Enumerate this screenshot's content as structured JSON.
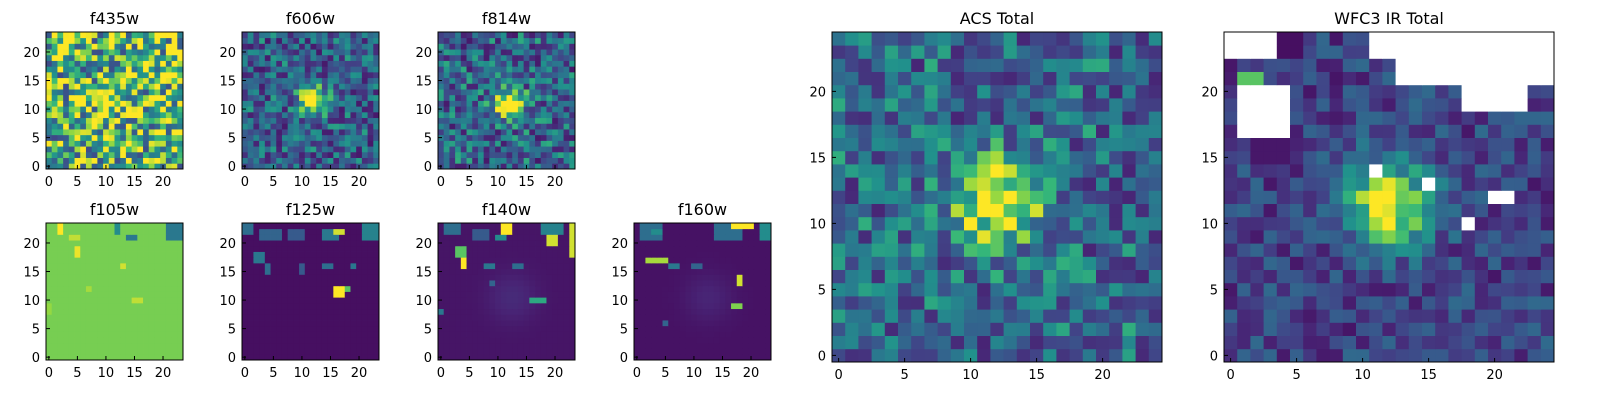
{
  "chart_data": [
    {
      "type": "heatmap",
      "title": "f435w",
      "colormap": "viridis",
      "grid": false,
      "size": 24,
      "xticks": [
        "0",
        "5",
        "10",
        "15",
        "20"
      ],
      "yticks": [
        "0",
        "5",
        "10",
        "15",
        "20"
      ],
      "xlim": [
        0,
        24
      ],
      "ylim": [
        0,
        24
      ],
      "pattern": "noisy-bright",
      "background_level": 0.72,
      "noise_amplitude": 0.45,
      "source": {
        "x": 12.5,
        "y": 12,
        "sigma": 3,
        "amplitude": 0.15
      },
      "seed": 11
    },
    {
      "type": "heatmap",
      "title": "f606w",
      "colormap": "viridis",
      "grid": false,
      "size": 24,
      "xticks": [
        "0",
        "5",
        "10",
        "15",
        "20"
      ],
      "yticks": [
        "0",
        "5",
        "10",
        "15",
        "20"
      ],
      "xlim": [
        0,
        24
      ],
      "ylim": [
        0,
        24
      ],
      "pattern": "point-source",
      "background_level": 0.38,
      "noise_amplitude": 0.3,
      "source": {
        "x": 12.5,
        "y": 12,
        "sigma": 1.8,
        "amplitude": 0.75
      },
      "seed": 23
    },
    {
      "type": "heatmap",
      "title": "f814w",
      "colormap": "viridis",
      "grid": false,
      "size": 24,
      "xticks": [
        "0",
        "5",
        "10",
        "15",
        "20"
      ],
      "yticks": [
        "0",
        "5",
        "10",
        "15",
        "20"
      ],
      "xlim": [
        0,
        24
      ],
      "ylim": [
        0,
        24
      ],
      "pattern": "point-source",
      "background_level": 0.4,
      "noise_amplitude": 0.32,
      "source": {
        "x": 12.5,
        "y": 11.5,
        "sigma": 1.8,
        "amplitude": 0.75
      },
      "seed": 37
    },
    {
      "type": "heatmap",
      "title": "ACS Total",
      "colormap": "viridis",
      "grid": false,
      "size": 25,
      "xticks": [
        "0",
        "5",
        "10",
        "15",
        "20"
      ],
      "yticks": [
        "0",
        "5",
        "10",
        "15",
        "20"
      ],
      "xlim": [
        0,
        25
      ],
      "ylim": [
        0,
        25
      ],
      "pattern": "point-source",
      "background_level": 0.42,
      "noise_amplitude": 0.3,
      "source": {
        "x": 12.5,
        "y": 12,
        "sigma": 2.2,
        "amplitude": 0.7
      },
      "seed": 53
    },
    {
      "type": "heatmap",
      "title": "f105w",
      "colormap": "viridis",
      "grid": false,
      "size": 24,
      "xticks": [
        "0",
        "5",
        "10",
        "15",
        "20"
      ],
      "yticks": [
        "0",
        "5",
        "10",
        "15",
        "20"
      ],
      "xlim": [
        0,
        24
      ],
      "ylim": [
        0,
        24
      ],
      "pattern": "flat-saturated",
      "background_level": 0.84,
      "patches": [
        {
          "x": 2,
          "y": 22,
          "w": 1,
          "h": 2,
          "v": 1.0
        },
        {
          "x": 5,
          "y": 18,
          "w": 1,
          "h": 2,
          "v": 0.98
        },
        {
          "x": 4,
          "y": 21,
          "w": 2,
          "h": 1,
          "v": 0.93
        },
        {
          "x": 12,
          "y": 22,
          "w": 1,
          "h": 2,
          "v": 0.6
        },
        {
          "x": 14,
          "y": 21,
          "w": 2,
          "h": 1,
          "v": 0.5
        },
        {
          "x": 21,
          "y": 21,
          "w": 3,
          "h": 3,
          "v": 0.5
        },
        {
          "x": 13,
          "y": 16,
          "w": 1,
          "h": 1,
          "v": 0.95
        },
        {
          "x": 15,
          "y": 10,
          "w": 2,
          "h": 1,
          "v": 0.93
        },
        {
          "x": 7,
          "y": 12,
          "w": 1,
          "h": 1,
          "v": 0.9
        },
        {
          "x": 0,
          "y": 8,
          "w": 1,
          "h": 2,
          "v": 0.88
        }
      ]
    },
    {
      "type": "heatmap",
      "title": "f125w",
      "colormap": "viridis",
      "grid": false,
      "size": 24,
      "xticks": [
        "0",
        "5",
        "10",
        "15",
        "20"
      ],
      "yticks": [
        "0",
        "5",
        "10",
        "15",
        "20"
      ],
      "xlim": [
        0,
        24
      ],
      "ylim": [
        0,
        24
      ],
      "pattern": "dark-sparse",
      "background_level": 0.05,
      "patches": [
        {
          "x": 0,
          "y": 22,
          "w": 2,
          "h": 2,
          "v": 0.45
        },
        {
          "x": 3,
          "y": 21,
          "w": 4,
          "h": 2,
          "v": 0.4
        },
        {
          "x": 8,
          "y": 21,
          "w": 3,
          "h": 2,
          "v": 0.35
        },
        {
          "x": 14,
          "y": 21,
          "w": 3,
          "h": 2,
          "v": 0.5
        },
        {
          "x": 16,
          "y": 22,
          "w": 2,
          "h": 1,
          "v": 0.95
        },
        {
          "x": 21,
          "y": 21,
          "w": 3,
          "h": 3,
          "v": 0.55
        },
        {
          "x": 2,
          "y": 17,
          "w": 2,
          "h": 2,
          "v": 0.5
        },
        {
          "x": 4,
          "y": 15,
          "w": 1,
          "h": 2,
          "v": 0.45
        },
        {
          "x": 10,
          "y": 15,
          "w": 1,
          "h": 2,
          "v": 0.35
        },
        {
          "x": 14,
          "y": 16,
          "w": 2,
          "h": 1,
          "v": 0.45
        },
        {
          "x": 16,
          "y": 11,
          "w": 2,
          "h": 2,
          "v": 1.0
        },
        {
          "x": 18,
          "y": 12,
          "w": 1,
          "h": 1,
          "v": 0.8
        },
        {
          "x": 19,
          "y": 16,
          "w": 1,
          "h": 1,
          "v": 0.5
        }
      ]
    },
    {
      "type": "heatmap",
      "title": "f140w",
      "colormap": "viridis",
      "grid": false,
      "size": 24,
      "xticks": [
        "0",
        "5",
        "10",
        "15",
        "20"
      ],
      "yticks": [
        "0",
        "5",
        "10",
        "15",
        "20"
      ],
      "xlim": [
        0,
        24
      ],
      "ylim": [
        0,
        24
      ],
      "pattern": "dark-sparse",
      "background_level": 0.07,
      "source": {
        "x": 13,
        "y": 11,
        "sigma": 3,
        "amplitude": 0.08
      },
      "patches": [
        {
          "x": 1,
          "y": 22,
          "w": 3,
          "h": 2,
          "v": 0.45
        },
        {
          "x": 6,
          "y": 21,
          "w": 3,
          "h": 2,
          "v": 0.35
        },
        {
          "x": 11,
          "y": 22,
          "w": 2,
          "h": 2,
          "v": 1.0
        },
        {
          "x": 10,
          "y": 21,
          "w": 2,
          "h": 1,
          "v": 0.6
        },
        {
          "x": 19,
          "y": 20,
          "w": 2,
          "h": 2,
          "v": 0.95
        },
        {
          "x": 18,
          "y": 22,
          "w": 4,
          "h": 2,
          "v": 0.55
        },
        {
          "x": 23,
          "y": 18,
          "w": 1,
          "h": 6,
          "v": 0.95
        },
        {
          "x": 3,
          "y": 18,
          "w": 2,
          "h": 2,
          "v": 0.8
        },
        {
          "x": 4,
          "y": 16,
          "w": 1,
          "h": 2,
          "v": 1.0
        },
        {
          "x": 8,
          "y": 16,
          "w": 2,
          "h": 1,
          "v": 0.5
        },
        {
          "x": 13,
          "y": 16,
          "w": 2,
          "h": 1,
          "v": 0.45
        },
        {
          "x": 16,
          "y": 10,
          "w": 3,
          "h": 1,
          "v": 0.7
        },
        {
          "x": 9,
          "y": 13,
          "w": 1,
          "h": 1,
          "v": 0.4
        },
        {
          "x": 0,
          "y": 8,
          "w": 1,
          "h": 1,
          "v": 0.5
        }
      ]
    },
    {
      "type": "heatmap",
      "title": "f160w",
      "colormap": "viridis",
      "grid": false,
      "size": 24,
      "xticks": [
        "0",
        "5",
        "10",
        "15",
        "20"
      ],
      "yticks": [
        "0",
        "5",
        "10",
        "15",
        "20"
      ],
      "xlim": [
        0,
        24
      ],
      "ylim": [
        0,
        24
      ],
      "pattern": "dark-sparse",
      "background_level": 0.06,
      "source": {
        "x": 13,
        "y": 11,
        "sigma": 3,
        "amplitude": 0.07
      },
      "patches": [
        {
          "x": 1,
          "y": 21,
          "w": 4,
          "h": 3,
          "v": 0.45
        },
        {
          "x": 3,
          "y": 22,
          "w": 2,
          "h": 1,
          "v": 0.6
        },
        {
          "x": 14,
          "y": 21,
          "w": 5,
          "h": 3,
          "v": 0.45
        },
        {
          "x": 17,
          "y": 23,
          "w": 4,
          "h": 1,
          "v": 1.0
        },
        {
          "x": 22,
          "y": 21,
          "w": 2,
          "h": 3,
          "v": 0.6
        },
        {
          "x": 2,
          "y": 17,
          "w": 4,
          "h": 1,
          "v": 0.9
        },
        {
          "x": 6,
          "y": 16,
          "w": 2,
          "h": 1,
          "v": 0.5
        },
        {
          "x": 10,
          "y": 16,
          "w": 2,
          "h": 1,
          "v": 0.4
        },
        {
          "x": 18,
          "y": 13,
          "w": 1,
          "h": 2,
          "v": 0.95
        },
        {
          "x": 17,
          "y": 9,
          "w": 2,
          "h": 1,
          "v": 0.85
        },
        {
          "x": 5,
          "y": 6,
          "w": 1,
          "h": 1,
          "v": 0.4
        }
      ]
    },
    {
      "type": "heatmap",
      "title": "WFC3 IR Total",
      "colormap": "viridis",
      "grid": false,
      "size": 25,
      "xticks": [
        "0",
        "5",
        "10",
        "15",
        "20"
      ],
      "yticks": [
        "0",
        "5",
        "10",
        "15",
        "20"
      ],
      "xlim": [
        0,
        25
      ],
      "ylim": [
        0,
        25
      ],
      "pattern": "point-source-masked",
      "background_level": 0.25,
      "noise_amplitude": 0.18,
      "source": {
        "x": 12.5,
        "y": 12,
        "sigma": 2.4,
        "amplitude": 0.78
      },
      "masked_regions": [
        {
          "x": 0,
          "y": 23,
          "w": 4,
          "h": 2
        },
        {
          "x": 13,
          "y": 21,
          "w": 12,
          "h": 4
        },
        {
          "x": 11,
          "y": 23,
          "w": 2,
          "h": 2
        },
        {
          "x": 1,
          "y": 17,
          "w": 4,
          "h": 4
        },
        {
          "x": 18,
          "y": 19,
          "w": 5,
          "h": 2
        },
        {
          "x": 11,
          "y": 14,
          "w": 1,
          "h": 1
        },
        {
          "x": 15,
          "y": 13,
          "w": 1,
          "h": 1
        },
        {
          "x": 20,
          "y": 12,
          "w": 2,
          "h": 1
        },
        {
          "x": 18,
          "y": 10,
          "w": 1,
          "h": 1
        }
      ],
      "patches": [
        {
          "x": 1,
          "y": 21,
          "w": 2,
          "h": 1,
          "v": 0.8
        },
        {
          "x": 4,
          "y": 23,
          "w": 2,
          "h": 2,
          "v": 0.05
        },
        {
          "x": 2,
          "y": 15,
          "w": 3,
          "h": 2,
          "v": 0.08
        }
      ]
    }
  ]
}
